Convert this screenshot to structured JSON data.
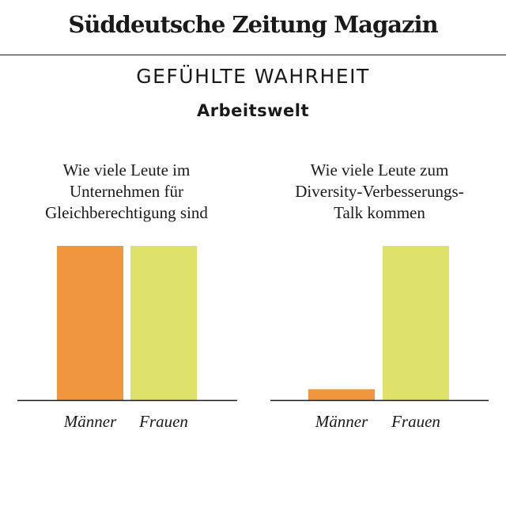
{
  "masthead": {
    "logo_text": "Süddeutsche Zeitung Magazin"
  },
  "heading": {
    "title": "GEFÜHLTE WAHRHEIT",
    "subtitle": "Arbeitswelt"
  },
  "colors": {
    "Männer": "#f0963f",
    "Frauen": "#dee16a",
    "axis": "#1a1a1a"
  },
  "chart_data": [
    {
      "type": "bar",
      "title": "Wie viele Leute im\nUnternehmen für\nGleichberechtigung sind",
      "categories": [
        "Männer",
        "Frauen"
      ],
      "values": [
        100,
        100
      ],
      "ylim": [
        0,
        100
      ]
    },
    {
      "type": "bar",
      "title": "Wie viele Leute zum\nDiversity-Verbesserungs-\nTalk kommen",
      "categories": [
        "Männer",
        "Frauen"
      ],
      "values": [
        7,
        100
      ],
      "ylim": [
        0,
        100
      ]
    }
  ]
}
